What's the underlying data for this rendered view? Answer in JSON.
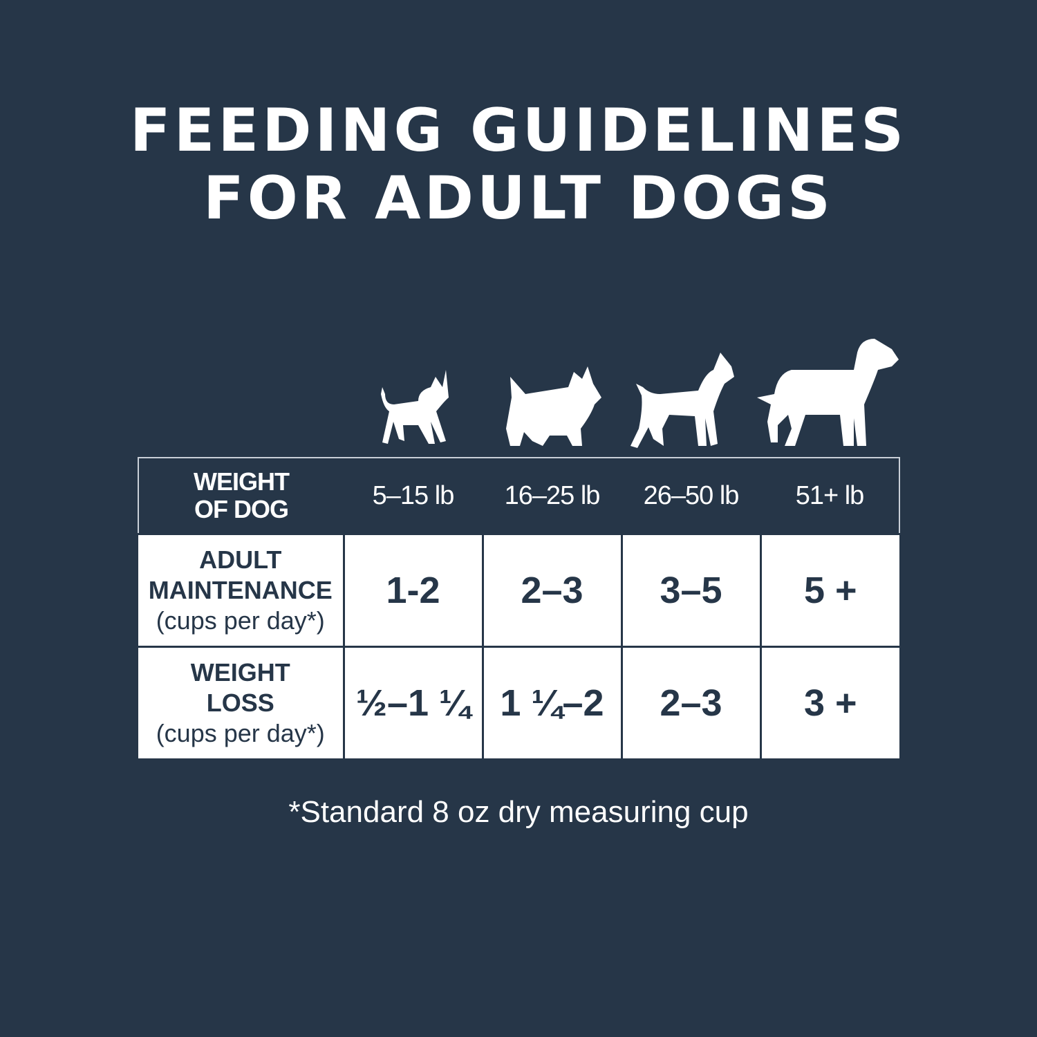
{
  "title": {
    "line1": "FEEDING GUIDELINES",
    "line2": "FOR ADULT DOGS"
  },
  "icons": [
    "small-dog-chihuahua-icon",
    "terrier-dog-icon",
    "boxer-dog-icon",
    "large-dog-rottweiler-icon"
  ],
  "table": {
    "header": {
      "label_line1": "WEIGHT",
      "label_line2": "OF DOG",
      "columns": [
        "5–15 lb",
        "16–25 lb",
        "26–50 lb",
        "51+ lb"
      ]
    },
    "rows": [
      {
        "label_line1": "ADULT",
        "label_line2": "MAINTENANCE",
        "unit": "(cups per day*)",
        "values": [
          "1-2",
          "2–3",
          "3–5",
          "5 +"
        ]
      },
      {
        "label_line1": "WEIGHT",
        "label_line2": "LOSS",
        "unit": "(cups per day*)",
        "values": [
          "½–1 ¼",
          "1 ¼–2",
          "2–3",
          "3 +"
        ]
      }
    ]
  },
  "footnote": "*Standard 8 oz dry measuring cup",
  "colors": {
    "background": "#263648",
    "cell": "#ffffff",
    "text_dark": "#263648"
  }
}
